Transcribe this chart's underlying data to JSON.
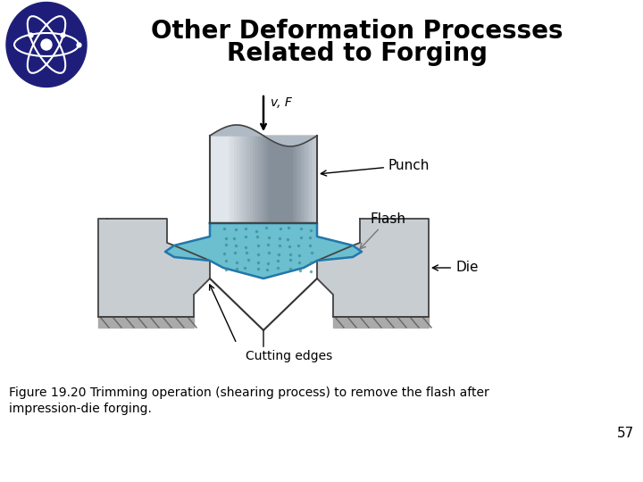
{
  "title_line1": "Other Deformation Processes",
  "title_line2": "Related to Forging",
  "caption_line1": "Figure 19.20 Trimming operation (shearing process) to remove the flash after",
  "caption_line2": "impression-die forging.",
  "page_number": "57",
  "label_punch": "Punch",
  "label_flash": "Flash",
  "label_die": "Die",
  "label_vf": "v, F",
  "label_cutting": "Cutting edges",
  "bg_color": "#ffffff",
  "title_color": "#000000",
  "flash_color": "#6bbfcf",
  "flash_outline": "#2277aa",
  "die_color": "#c8cdd2",
  "die_outline": "#444444",
  "punch_mid": "#9aa5b0",
  "punch_light": "#d0d8e0",
  "punch_dark": "#606870"
}
